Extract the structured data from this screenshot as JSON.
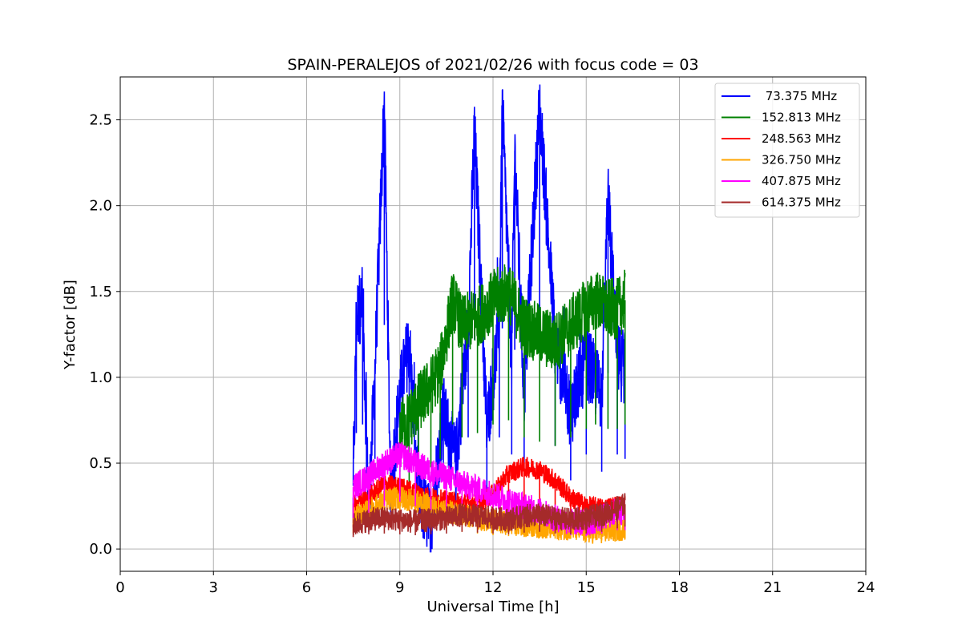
{
  "chart_data": {
    "type": "line",
    "title": "SPAIN-PERALEJOS of 2021/02/26 with focus code = 03",
    "xlabel": "Universal Time [h]",
    "ylabel": "Y-factor [dB]",
    "xlim": [
      0,
      24
    ],
    "ylim": [
      -0.13,
      2.75
    ],
    "x_ticks": [
      0,
      3,
      6,
      9,
      12,
      15,
      18,
      21,
      24
    ],
    "x_tick_labels": [
      "0",
      "3",
      "6",
      "9",
      "12",
      "15",
      "18",
      "21",
      "24"
    ],
    "y_ticks": [
      0.0,
      0.5,
      1.0,
      1.5,
      2.0,
      2.5
    ],
    "y_tick_labels": [
      "0.0",
      "0.5",
      "1.0",
      "1.5",
      "2.0",
      "2.5"
    ],
    "grid": true,
    "legend_position": "top-right",
    "series": [
      {
        "name": " 73.375 MHz",
        "color": "#0000ff",
        "x": [
          7.5,
          7.6,
          7.8,
          8.0,
          8.2,
          8.5,
          8.7,
          9.0,
          9.3,
          9.6,
          10.0,
          10.4,
          10.8,
          11.2,
          11.4,
          11.8,
          12.2,
          12.3,
          12.6,
          12.7,
          13.0,
          13.5,
          14.0,
          14.5,
          15.0,
          15.5,
          15.7,
          16.0,
          16.25
        ],
        "y": [
          0.3,
          1.35,
          1.45,
          0.2,
          1.05,
          2.61,
          0.35,
          0.9,
          1.2,
          0.3,
          0.15,
          0.8,
          0.5,
          1.3,
          2.44,
          0.7,
          1.3,
          2.57,
          1.1,
          2.32,
          0.9,
          2.58,
          1.2,
          0.8,
          1.1,
          0.9,
          2.05,
          1.1,
          1.05
        ]
      },
      {
        "name": "152.813 MHz",
        "color": "#008000",
        "x": [
          9.0,
          9.3,
          9.6,
          10.0,
          10.3,
          10.7,
          11.0,
          11.5,
          12.0,
          12.5,
          13.0,
          13.5,
          14.0,
          14.5,
          15.0,
          15.3,
          15.7,
          16.0,
          16.25
        ],
        "y": [
          0.7,
          0.75,
          0.85,
          0.95,
          1.05,
          1.45,
          1.3,
          1.35,
          1.45,
          1.5,
          1.3,
          1.25,
          1.2,
          1.3,
          1.4,
          1.45,
          1.4,
          1.4,
          1.45
        ]
      },
      {
        "name": "248.563 MHz",
        "color": "#ff0000",
        "x": [
          7.5,
          8.0,
          8.5,
          9.0,
          9.5,
          10.0,
          10.5,
          11.0,
          11.5,
          12.0,
          12.5,
          13.0,
          13.5,
          14.0,
          14.5,
          15.0,
          15.5,
          16.0,
          16.25
        ],
        "y": [
          0.25,
          0.3,
          0.38,
          0.36,
          0.33,
          0.3,
          0.28,
          0.27,
          0.26,
          0.32,
          0.44,
          0.48,
          0.46,
          0.4,
          0.3,
          0.25,
          0.24,
          0.25,
          0.26
        ]
      },
      {
        "name": "326.750 MHz",
        "color": "#ffa500",
        "x": [
          7.5,
          8.0,
          8.5,
          9.0,
          9.5,
          10.0,
          10.5,
          11.0,
          11.5,
          12.0,
          12.5,
          13.0,
          13.5,
          14.0,
          14.5,
          15.0,
          15.5,
          16.0,
          16.25
        ],
        "y": [
          0.18,
          0.22,
          0.28,
          0.3,
          0.28,
          0.25,
          0.22,
          0.2,
          0.18,
          0.16,
          0.15,
          0.14,
          0.13,
          0.12,
          0.12,
          0.1,
          0.1,
          0.11,
          0.12
        ]
      },
      {
        "name": "407.875 MHz",
        "color": "#ff00ff",
        "x": [
          7.5,
          8.0,
          8.5,
          9.0,
          9.5,
          10.0,
          10.5,
          11.0,
          11.5,
          12.0,
          12.5,
          13.0,
          13.5,
          14.0,
          14.5,
          15.0,
          15.5,
          16.0,
          16.25
        ],
        "y": [
          0.36,
          0.42,
          0.5,
          0.55,
          0.5,
          0.45,
          0.42,
          0.38,
          0.35,
          0.32,
          0.28,
          0.25,
          0.22,
          0.18,
          0.16,
          0.15,
          0.18,
          0.22,
          0.22
        ]
      },
      {
        "name": "614.375 MHz",
        "color": "#a52a2a",
        "x": [
          7.5,
          8.0,
          8.5,
          9.0,
          9.5,
          10.0,
          10.5,
          11.0,
          11.5,
          12.0,
          12.5,
          13.0,
          13.5,
          14.0,
          14.5,
          15.0,
          15.5,
          16.0,
          16.25
        ],
        "y": [
          0.14,
          0.17,
          0.18,
          0.17,
          0.16,
          0.17,
          0.18,
          0.2,
          0.19,
          0.18,
          0.17,
          0.19,
          0.2,
          0.18,
          0.17,
          0.18,
          0.2,
          0.24,
          0.26
        ]
      }
    ]
  }
}
